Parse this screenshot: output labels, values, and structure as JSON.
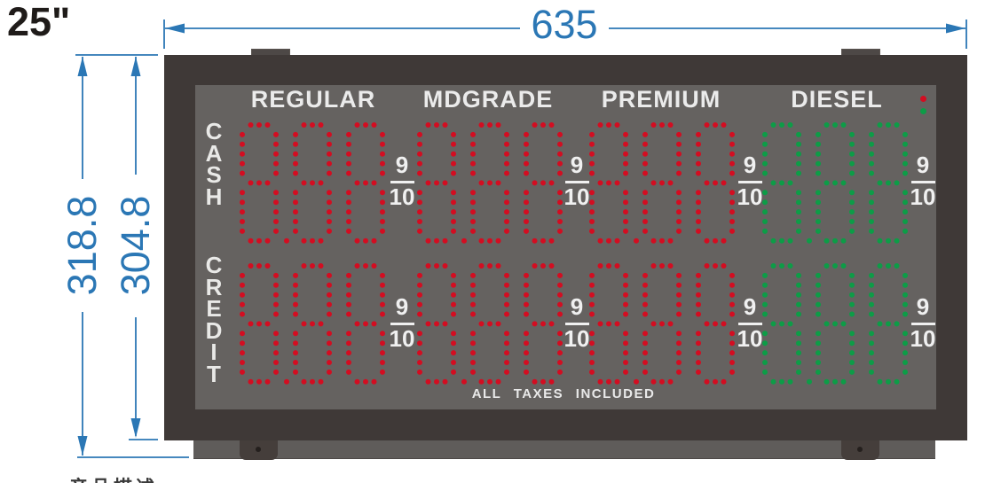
{
  "dimensions": {
    "dim_color": "#2b77b5",
    "overall_size_label": "25\"",
    "width_label": "635",
    "height_outer_label": "318.8",
    "height_inner_label": "304.8"
  },
  "sign": {
    "rows": [
      {
        "label": "CASH"
      },
      {
        "label": "CREDIT"
      }
    ],
    "columns": [
      {
        "header": "REGULAR",
        "value": "8.88",
        "fraction_num": "9",
        "fraction_den": "10",
        "led_color": "#d30d21"
      },
      {
        "header": "MDGRADE",
        "value": "8.88",
        "fraction_num": "9",
        "fraction_den": "10",
        "led_color": "#d30d21"
      },
      {
        "header": "PREMIUM",
        "value": "8.88",
        "fraction_num": "9",
        "fraction_den": "10",
        "led_color": "#d30d21"
      },
      {
        "header": "DIESEL",
        "value": "8.88",
        "fraction_num": "9",
        "fraction_den": "10",
        "led_color": "#0d9c47"
      }
    ],
    "footer": "ALL TAXES INCLUDED",
    "indicator_dots": [
      {
        "name": "red-indicator",
        "color": "#d30d21"
      },
      {
        "name": "green-indicator",
        "color": "#0d9c47"
      }
    ]
  },
  "caption": {
    "text": "产品描述"
  }
}
